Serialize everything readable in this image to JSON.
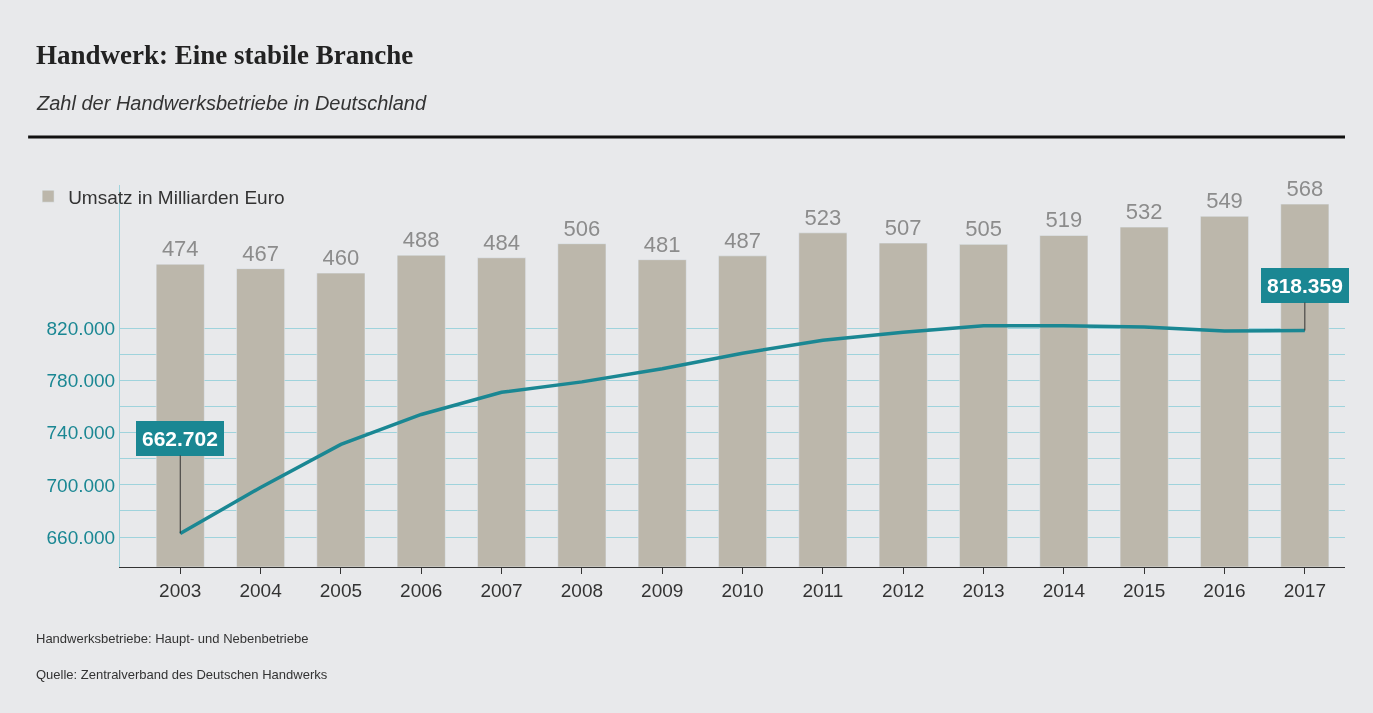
{
  "chart_data": {
    "type": "bar",
    "title": "Handwerk: Eine stabile Branche",
    "subtitle": "Zahl der Handwerksbetriebe in Deutschland",
    "categories": [
      "2003",
      "2004",
      "2005",
      "2006",
      "2007",
      "2008",
      "2009",
      "2010",
      "2011",
      "2012",
      "2013",
      "2014",
      "2015",
      "2016",
      "2017"
    ],
    "series": [
      {
        "name": "Umsatz in Milliarden Euro",
        "axis": "y2",
        "color": "#bcb7ab",
        "data_labels": true,
        "values": [
          474,
          467,
          460,
          488,
          484,
          506,
          481,
          487,
          523,
          507,
          505,
          519,
          532,
          549,
          568
        ]
      },
      {
        "type": "line",
        "color": "#1a8793",
        "values": [
          662702,
          698000,
          731000,
          754000,
          771000,
          779000,
          789000,
          801000,
          811000,
          817000,
          822000,
          822000,
          821000,
          818000,
          818359
        ]
      }
    ],
    "ylim": [
      637000,
      930000
    ],
    "yticks": [
      {
        "value": 660000,
        "label": "660.000"
      },
      {
        "value": 680000,
        "label": null
      },
      {
        "value": 700000,
        "label": "700.000"
      },
      {
        "value": 720000,
        "label": null
      },
      {
        "value": 740000,
        "label": "740.000"
      },
      {
        "value": 760000,
        "label": null
      },
      {
        "value": 780000,
        "label": "780.000"
      },
      {
        "value": 800000,
        "label": null
      },
      {
        "value": 820000,
        "label": "820.000"
      }
    ],
    "grid": "y",
    "legend": "top left",
    "annotations": [
      {
        "text": "662.702",
        "x": "2003",
        "y": 662702
      },
      {
        "text": "818.359",
        "x": "2017",
        "y": 818359
      },
      "Handwerksbetriebe: Haupt- und Nebenbetriebe",
      "Quelle: Zentralverband des Deutschen Handwerks"
    ]
  }
}
